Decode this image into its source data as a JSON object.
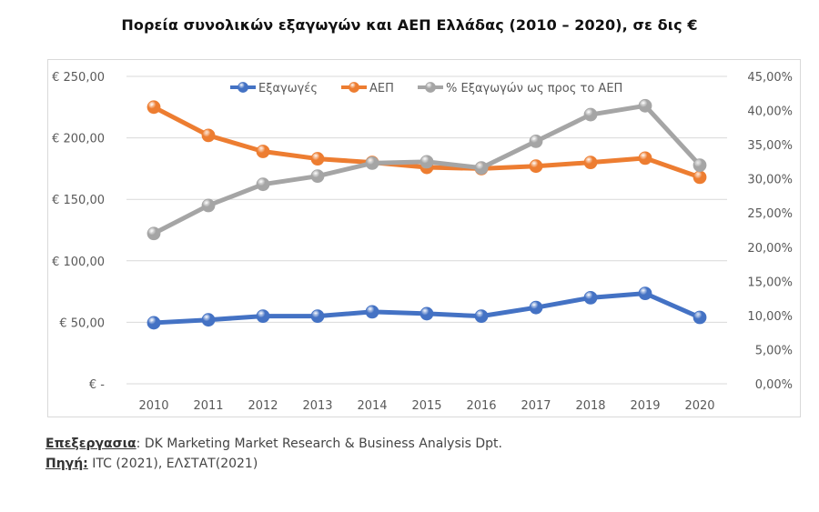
{
  "chart_data": {
    "type": "line",
    "title": "Πορεία συνολικών εξαγωγών και ΑΕΠ Ελλάδας (2010 – 2020), σε δις €",
    "xlabel": "",
    "ylabel": "",
    "categories": [
      "2010",
      "2011",
      "2012",
      "2013",
      "2014",
      "2015",
      "2016",
      "2017",
      "2018",
      "2019",
      "2020"
    ],
    "series": [
      {
        "name": "Εξαγωγές",
        "axis": "left",
        "color": "#4472c4",
        "values": [
          49.6,
          52.0,
          55.0,
          55.0,
          58.5,
          57.0,
          55.0,
          62.0,
          70.0,
          73.5,
          54.0
        ]
      },
      {
        "name": "ΑΕΠ",
        "axis": "left",
        "color": "#ed7d31",
        "values": [
          225.0,
          202.0,
          189.0,
          183.0,
          180.0,
          176.0,
          175.0,
          177.0,
          180.0,
          183.5,
          168.0
        ]
      },
      {
        "name": "% Εξαγωγών ως προς το ΑΕΠ",
        "axis": "right",
        "color": "#a5a5a5",
        "values": [
          22.0,
          26.1,
          29.2,
          30.4,
          32.3,
          32.5,
          31.6,
          35.5,
          39.4,
          40.7,
          32.0
        ]
      }
    ],
    "y_left": {
      "range": [
        0,
        250
      ],
      "ticks": [
        0,
        50,
        100,
        150,
        200,
        250
      ],
      "tick_labels": [
        "€ -",
        "€ 50,00",
        "€ 100,00",
        "€ 150,00",
        "€ 200,00",
        "€ 250,00"
      ]
    },
    "y_right": {
      "range": [
        0,
        45
      ],
      "ticks": [
        0,
        5,
        10,
        15,
        20,
        25,
        30,
        35,
        40,
        45
      ],
      "tick_labels": [
        "0,00%",
        "5,00%",
        "10,00%",
        "15,00%",
        "20,00%",
        "25,00%",
        "30,00%",
        "35,00%",
        "40,00%",
        "45,00%"
      ]
    },
    "grid": true,
    "legend": "top-center"
  },
  "footer": {
    "processing_label": "Επεξεργασια",
    "processing_text": ": DK Marketing Market Research & Business Analysis Dpt.",
    "source_label": "Πηγή:",
    "source_text": " ITC (2021), ΕΛΣΤΑΤ(2021)"
  }
}
